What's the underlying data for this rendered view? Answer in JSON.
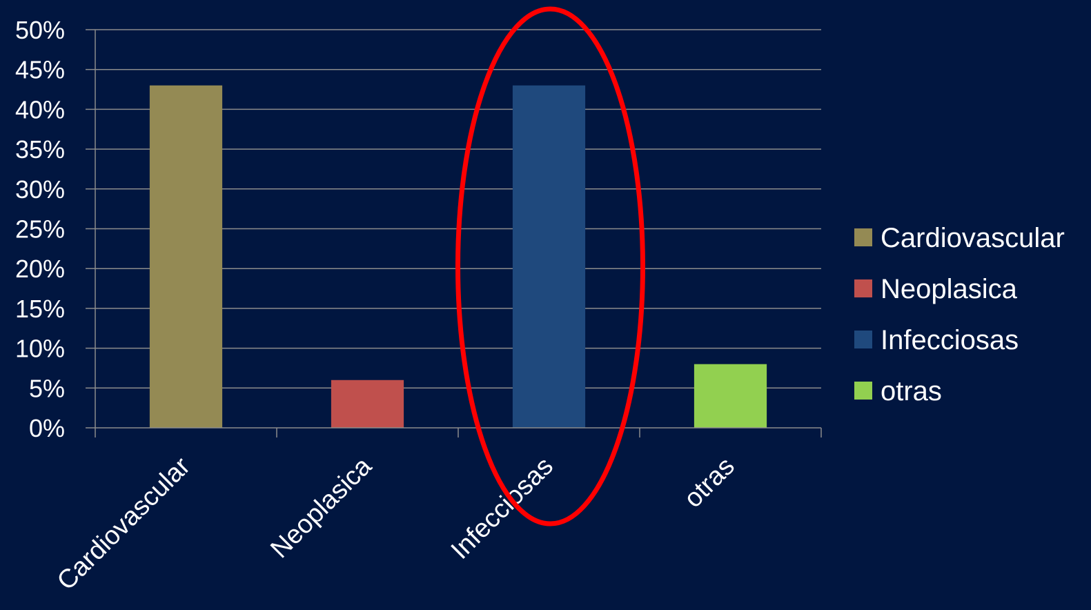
{
  "chart_data": {
    "type": "bar",
    "categories": [
      "Cardiovascular",
      "Neoplasica",
      "Infecciosas",
      "otras"
    ],
    "values": [
      43,
      6,
      43,
      8
    ],
    "colors": [
      "#948A54",
      "#C0504D",
      "#1F497D",
      "#92D050"
    ],
    "y_tick_labels": [
      "0%",
      "5%",
      "10%",
      "15%",
      "20%",
      "25%",
      "30%",
      "35%",
      "40%",
      "45%",
      "50%"
    ],
    "ylim": [
      0,
      50
    ],
    "y_unit": "%",
    "grid": true,
    "legend": {
      "placement": "right",
      "entries": [
        "Cardiovascular",
        "Neoplasica",
        "Infecciosas",
        "otras"
      ]
    },
    "annotation": {
      "type": "ellipse-highlight",
      "target_category": "Infecciosas",
      "color": "#FF0000"
    }
  },
  "colors": {
    "background": "#011640",
    "axis": "#8C8C8C",
    "text": "#FFFFFF"
  }
}
